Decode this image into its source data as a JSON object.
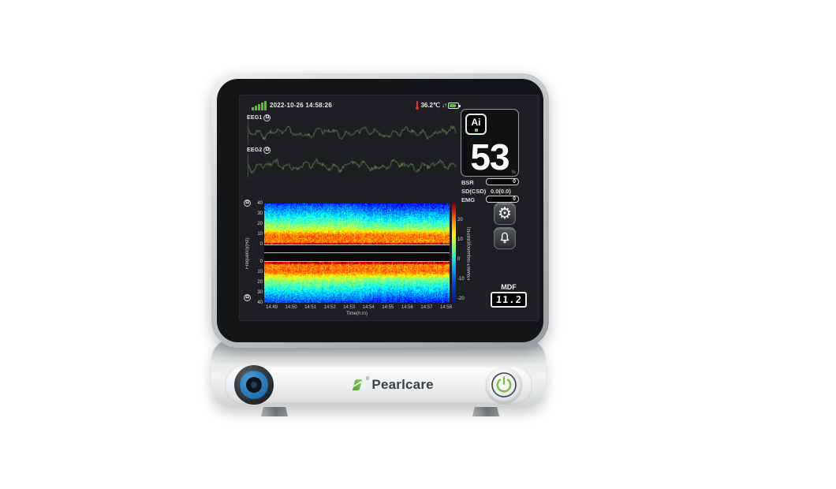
{
  "colors": {
    "accent_green": "#76c043",
    "signal_green": "#55c41e",
    "wave_green": "#5d7b4c",
    "knob_blue": "#2b86c8",
    "alarm_red": "#e8392b"
  },
  "status_bar": {
    "datetime": "2022-10-26 14:58:26",
    "temperature": "36.2℃",
    "trend_arrows": "↓↑"
  },
  "eeg": {
    "ch1_label": "EEG1",
    "ch2_label": "EEG2",
    "impedance_symbol": "Ω"
  },
  "ai_panel": {
    "label": "Ai",
    "value": "53",
    "unit": "%"
  },
  "metrics": {
    "bsr_label": "BSR",
    "bsr_value": "0",
    "sd_label": "SD(CSD)",
    "sd_value": "0.0(0.0)",
    "emg_label": "EMG",
    "emg_value": "0"
  },
  "buttons": {
    "gear_glyph": "⚙"
  },
  "mdf": {
    "label": "MDF",
    "value": "11.2"
  },
  "spectrogram": {
    "ylabel": "Frequency(Hz)",
    "xlabel": "Time(h:m)",
    "y_ticks_top": [
      "40",
      "30",
      "20",
      "10",
      "0"
    ],
    "y_ticks_bottom": [
      "0",
      "10",
      "20",
      "30",
      "40"
    ],
    "x_ticks": [
      "14:49",
      "14:50",
      "14:51",
      "14:52",
      "14:53",
      "14:54",
      "14:55",
      "14:56",
      "14:57",
      "14:58"
    ],
    "colorbar_label": "Power/Frequency(dB/Hz)",
    "colorbar_ticks": [
      "20",
      "10",
      "0",
      "-10",
      "-20"
    ]
  },
  "device": {
    "brand": "Pearlcare",
    "reg_mark": "®"
  },
  "chart_data": [
    {
      "type": "line",
      "title": "EEG1 waveform",
      "xlabel": "time",
      "ylabel": "amplitude",
      "note": "continuous EEG trace, no visible numeric scale"
    },
    {
      "type": "line",
      "title": "EEG2 waveform",
      "xlabel": "time",
      "ylabel": "amplitude",
      "note": "continuous EEG trace, no visible numeric scale"
    },
    {
      "type": "heatmap",
      "title": "Density spectral array (EEG1 top, EEG2 mirrored bottom)",
      "xlabel": "Time(h:m)",
      "x_range": [
        "14:49",
        "14:58"
      ],
      "ylabel": "Frequency(Hz)",
      "y_range_hz": [
        0,
        40
      ],
      "colorbar": {
        "label": "Power/Frequency(dB/Hz)",
        "range": [
          -20,
          20
        ]
      },
      "features": "high power (red/yellow) below ~12 Hz, strongest near 0-3 Hz; low power (blue) above ~20 Hz; texture change near 14:53"
    }
  ]
}
